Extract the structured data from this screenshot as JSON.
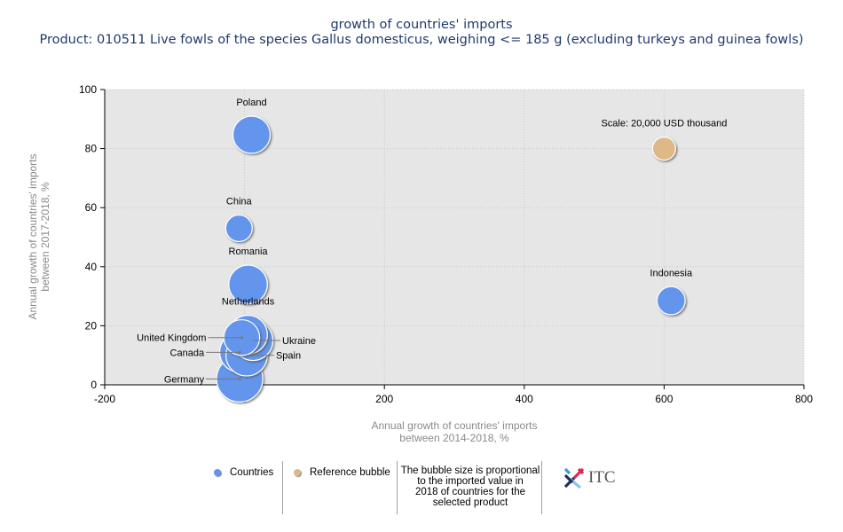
{
  "header": {
    "title": "growth of countries' imports",
    "subtitle": "Product: 010511 Live fowls of the species Gallus domesticus, weighing <= 185 g (excluding turkeys and guinea fowls)"
  },
  "colors": {
    "countries": "#6495ed",
    "reference": "#deb887",
    "plot_bg": "#e6e6e6"
  },
  "chart_data": {
    "type": "scatter",
    "subtype": "bubble",
    "title": "growth of countries' imports",
    "subtitle": "Product: 010511 Live fowls of the species Gallus domesticus, weighing <= 185 g (excluding turkeys and guinea fowls)",
    "xlabel": "Annual growth of countries' imports between 2014-2018, %",
    "ylabel": "Annual growth of countries' imports between 2017-2018, %",
    "xlabel_lines": [
      "Annual growth of countries' imports",
      "between 2014-2018, %"
    ],
    "ylabel_lines": [
      "Annual growth of countries' imports",
      "between 2017-2018, %"
    ],
    "xlim": [
      -200,
      800
    ],
    "ylim": [
      0,
      100
    ],
    "xticks": [
      -200,
      0,
      200,
      400,
      600,
      800
    ],
    "yticks": [
      0,
      20,
      40,
      60,
      80,
      100
    ],
    "grid": true,
    "series": [
      {
        "name": "Countries",
        "points": [
          {
            "label": "Germany",
            "x": -7,
            "y": 2,
            "size": 1.0,
            "label_pos": "left"
          },
          {
            "label": "Canada",
            "x": -7,
            "y": 11,
            "size": 0.75,
            "label_pos": "left"
          },
          {
            "label": "Spain",
            "x": 3,
            "y": 10,
            "size": 0.8,
            "label_pos": "right"
          },
          {
            "label": "Ukraine",
            "x": 12,
            "y": 15,
            "size": 0.75,
            "label_pos": "right"
          },
          {
            "label": "Netherlands",
            "x": 5,
            "y": 17,
            "size": 0.7,
            "label_pos": "top"
          },
          {
            "label": "United Kingdom",
            "x": -4,
            "y": 16,
            "size": 0.6,
            "label_pos": "left"
          },
          {
            "label": "Romania",
            "x": 5,
            "y": 34,
            "size": 0.7,
            "label_pos": "top"
          },
          {
            "label": "China",
            "x": -8,
            "y": 53,
            "size": 0.33,
            "label_pos": "top"
          },
          {
            "label": "Poland",
            "x": 10,
            "y": 84.7,
            "size": 0.65,
            "label_pos": "top"
          },
          {
            "label": "Indonesia",
            "x": 610,
            "y": 28.5,
            "size": 0.37,
            "label_pos": "top"
          }
        ]
      },
      {
        "name": "Reference bubble",
        "points": [
          {
            "label": "Scale: 20,000 USD thousand",
            "x": 600,
            "y": 80,
            "size": 0.25,
            "label_pos": "top"
          }
        ]
      }
    ],
    "legend": {
      "placement": "bottom",
      "items": [
        "Countries",
        "Reference bubble"
      ],
      "note": "The bubble size is proportional to the imported value in 2018 of countries for the selected product"
    }
  },
  "legend": {
    "countries": "Countries",
    "reference": "Reference bubble",
    "note_lines": [
      "The bubble size is proportional",
      "to the imported value in",
      "2018 of countries for the",
      "selected product"
    ]
  },
  "logo": {
    "text": "ITC",
    "icon": "itc-logo-icon"
  }
}
